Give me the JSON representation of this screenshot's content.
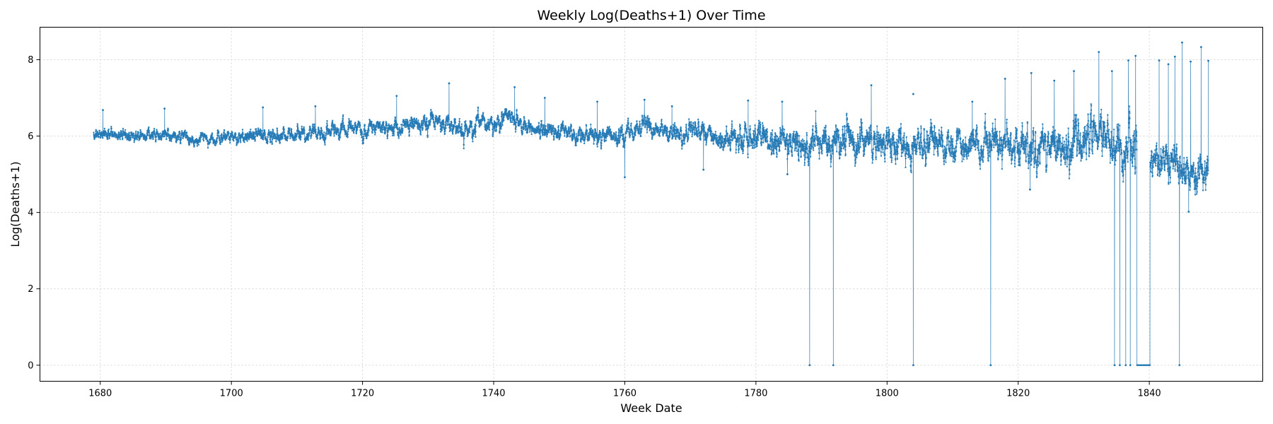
{
  "chart_data": {
    "type": "line",
    "title": "Weekly Log(Deaths+1) Over Time",
    "xlabel": "Week Date",
    "ylabel": "Log(Deaths+1)",
    "xlim": [
      1670.8,
      1857.3
    ],
    "ylim": [
      -0.42,
      8.85
    ],
    "xticks": [
      1680,
      1700,
      1720,
      1740,
      1760,
      1780,
      1800,
      1820,
      1840
    ],
    "yticks": [
      0,
      2,
      4,
      6,
      8
    ],
    "grid": true,
    "markers": true,
    "line_color": "#1f77b4",
    "series": [
      {
        "name": "Log(Deaths+1)",
        "start": 1679.0,
        "end": 1849.0,
        "trend": [
          [
            1679,
            6.05
          ],
          [
            1685,
            6.02
          ],
          [
            1690,
            6.05
          ],
          [
            1695,
            5.92
          ],
          [
            1700,
            5.98
          ],
          [
            1705,
            6.02
          ],
          [
            1710,
            6.05
          ],
          [
            1715,
            6.1
          ],
          [
            1720,
            6.2
          ],
          [
            1725,
            6.25
          ],
          [
            1730,
            6.35
          ],
          [
            1735,
            6.25
          ],
          [
            1740,
            6.3
          ],
          [
            1742,
            6.55
          ],
          [
            1745,
            6.2
          ],
          [
            1750,
            6.1
          ],
          [
            1755,
            5.95
          ],
          [
            1760,
            6.05
          ],
          [
            1763,
            6.25
          ],
          [
            1768,
            6.1
          ],
          [
            1772,
            6.05
          ],
          [
            1775,
            6.0
          ],
          [
            1780,
            5.95
          ],
          [
            1785,
            5.8
          ],
          [
            1790,
            5.85
          ],
          [
            1795,
            5.8
          ],
          [
            1800,
            5.82
          ],
          [
            1805,
            5.78
          ],
          [
            1810,
            5.82
          ],
          [
            1815,
            5.85
          ],
          [
            1820,
            5.8
          ],
          [
            1825,
            5.75
          ],
          [
            1830,
            5.9
          ],
          [
            1833,
            6.05
          ],
          [
            1836,
            5.65
          ],
          [
            1838,
            5.6
          ],
          [
            1840,
            5.45
          ],
          [
            1845,
            5.05
          ],
          [
            1849,
            5.1
          ]
        ],
        "spread": [
          [
            1679,
            0.09
          ],
          [
            1700,
            0.1
          ],
          [
            1740,
            0.14
          ],
          [
            1770,
            0.14
          ],
          [
            1780,
            0.22
          ],
          [
            1785,
            0.26
          ],
          [
            1800,
            0.25
          ],
          [
            1820,
            0.28
          ],
          [
            1825,
            0.34
          ],
          [
            1830,
            0.36
          ],
          [
            1836,
            0.38
          ],
          [
            1840,
            0.26
          ],
          [
            1849,
            0.3
          ]
        ],
        "spikes": [
          [
            1680.4,
            6.68
          ],
          [
            1689.8,
            6.72
          ],
          [
            1704.8,
            6.75
          ],
          [
            1712.8,
            6.78
          ],
          [
            1725.2,
            7.05
          ],
          [
            1733.2,
            7.38
          ],
          [
            1743.2,
            7.28
          ],
          [
            1747.8,
            7.0
          ],
          [
            1755.8,
            6.9
          ],
          [
            1763.0,
            6.95
          ],
          [
            1767.2,
            6.78
          ],
          [
            1778.8,
            6.93
          ],
          [
            1784.0,
            6.9
          ],
          [
            1797.6,
            7.33
          ],
          [
            1804.0,
            7.1
          ],
          [
            1813.0,
            6.9
          ],
          [
            1818.0,
            7.5
          ],
          [
            1822.0,
            7.65
          ],
          [
            1825.5,
            7.45
          ],
          [
            1828.5,
            7.7
          ],
          [
            1832.3,
            8.2
          ],
          [
            1834.3,
            7.7
          ],
          [
            1836.8,
            7.98
          ],
          [
            1837.9,
            8.1
          ],
          [
            1841.5,
            7.98
          ],
          [
            1842.9,
            7.88
          ],
          [
            1843.9,
            8.08
          ],
          [
            1845.0,
            8.45
          ],
          [
            1846.3,
            7.95
          ],
          [
            1847.9,
            8.33
          ],
          [
            1849.0,
            7.97
          ]
        ],
        "dips": [
          [
            1760.0,
            4.92
          ],
          [
            1772.0,
            5.12
          ],
          [
            1784.8,
            5.0
          ],
          [
            1821.8,
            4.6
          ],
          [
            1846.0,
            4.02
          ]
        ],
        "zero_points": [
          1788.2,
          1791.8,
          1804.0,
          1815.8,
          1834.7,
          1835.5,
          1836.4,
          1837.1,
          1844.6
        ],
        "zero_segments": [
          [
            1838.1,
            1840.1
          ]
        ]
      }
    ]
  }
}
